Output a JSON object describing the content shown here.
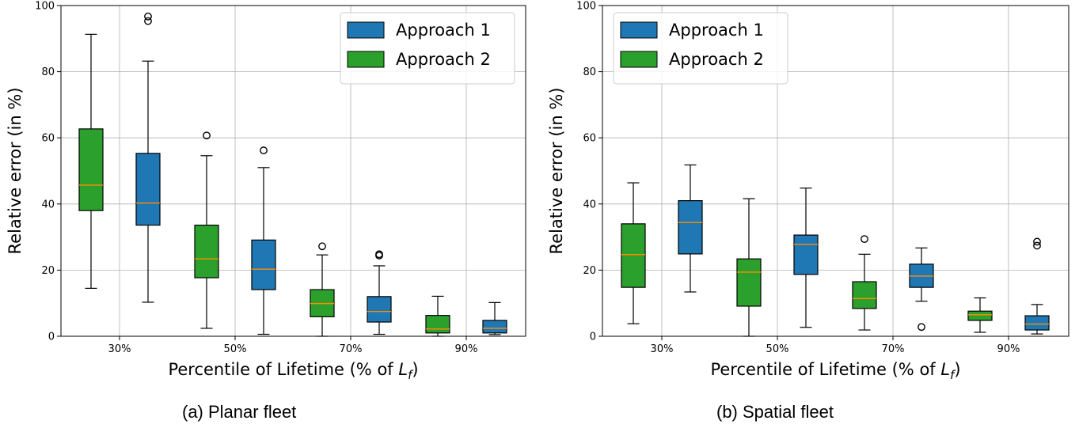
{
  "chart_data": [
    {
      "type": "box",
      "caption": "(a) Planar fleet",
      "xlabel": "Percentile of Lifetime (% of L_f)",
      "xlabel_parts": {
        "text": "Percentile of Lifetime (% of ",
        "var": "L",
        "sub": "f",
        "close": ")"
      },
      "ylabel": "Relative error (in %)",
      "ylim": [
        0,
        100
      ],
      "yticks": [
        0,
        20,
        40,
        60,
        80,
        100
      ],
      "xticks": [
        "30%",
        "50%",
        "70%",
        "90%"
      ],
      "grid": true,
      "legend_position": "top-right",
      "series": [
        {
          "name": "Approach 1",
          "color": "#1f77b4"
        },
        {
          "name": "Approach 2",
          "color": "#2ca02c"
        }
      ],
      "boxes": [
        {
          "series": "Approach 2",
          "group": "30%",
          "whisker_low": 14.5,
          "q1": 38,
          "median": 45.7,
          "q3": 62.7,
          "whisker_high": 91.3,
          "outliers": []
        },
        {
          "series": "Approach 1",
          "group": "30%",
          "whisker_low": 10.3,
          "q1": 33.6,
          "median": 40.3,
          "q3": 55.3,
          "whisker_high": 83.2,
          "outliers": [
            95.3,
            96.7
          ]
        },
        {
          "series": "Approach 2",
          "group": "50%",
          "whisker_low": 2.4,
          "q1": 17.7,
          "median": 23.4,
          "q3": 33.6,
          "whisker_high": 54.6,
          "outliers": [
            60.7
          ]
        },
        {
          "series": "Approach 1",
          "group": "50%",
          "whisker_low": 0.6,
          "q1": 14.1,
          "median": 20.3,
          "q3": 29.1,
          "whisker_high": 51,
          "outliers": [
            56.2
          ]
        },
        {
          "series": "Approach 2",
          "group": "70%",
          "whisker_low": 0,
          "q1": 5.9,
          "median": 9.9,
          "q3": 14.1,
          "whisker_high": 24.6,
          "outliers": [
            27.2
          ]
        },
        {
          "series": "Approach 1",
          "group": "70%",
          "whisker_low": 0.6,
          "q1": 4.3,
          "median": 7.5,
          "q3": 12,
          "whisker_high": 21.3,
          "outliers": [
            24.4,
            24.8
          ]
        },
        {
          "series": "Approach 2",
          "group": "90%",
          "whisker_low": 0,
          "q1": 1,
          "median": 2.2,
          "q3": 6.3,
          "whisker_high": 12.1,
          "outliers": []
        },
        {
          "series": "Approach 1",
          "group": "90%",
          "whisker_low": 0.5,
          "q1": 1,
          "median": 2.4,
          "q3": 4.8,
          "whisker_high": 10.2,
          "outliers": []
        }
      ]
    },
    {
      "type": "box",
      "caption": "(b) Spatial fleet",
      "xlabel": "Percentile of Lifetime (% of L_f)",
      "xlabel_parts": {
        "text": "Percentile of Lifetime (% of ",
        "var": "L",
        "sub": "f",
        "close": ")"
      },
      "ylabel": "Relative error (in %)",
      "ylim": [
        0,
        100
      ],
      "yticks": [
        0,
        20,
        40,
        60,
        80,
        100
      ],
      "xticks": [
        "30%",
        "50%",
        "70%",
        "90%"
      ],
      "grid": true,
      "legend_position": "top-left",
      "series": [
        {
          "name": "Approach 1",
          "color": "#1f77b4"
        },
        {
          "name": "Approach 2",
          "color": "#2ca02c"
        }
      ],
      "boxes": [
        {
          "series": "Approach 2",
          "group": "30%",
          "whisker_low": 3.8,
          "q1": 14.8,
          "median": 24.7,
          "q3": 34,
          "whisker_high": 46.4,
          "outliers": []
        },
        {
          "series": "Approach 1",
          "group": "30%",
          "whisker_low": 13.4,
          "q1": 24.9,
          "median": 34.4,
          "q3": 41,
          "whisker_high": 51.8,
          "outliers": []
        },
        {
          "series": "Approach 2",
          "group": "50%",
          "whisker_low": 0,
          "q1": 9.1,
          "median": 19.4,
          "q3": 23.4,
          "whisker_high": 41.6,
          "outliers": []
        },
        {
          "series": "Approach 1",
          "group": "50%",
          "whisker_low": 2.7,
          "q1": 18.7,
          "median": 27.8,
          "q3": 30.6,
          "whisker_high": 44.8,
          "outliers": []
        },
        {
          "series": "Approach 2",
          "group": "70%",
          "whisker_low": 1.9,
          "q1": 8.4,
          "median": 11.4,
          "q3": 16.5,
          "whisker_high": 24.8,
          "outliers": [
            29.4
          ]
        },
        {
          "series": "Approach 1",
          "group": "70%",
          "whisker_low": 10.6,
          "q1": 14.8,
          "median": 18.2,
          "q3": 21.8,
          "whisker_high": 26.7,
          "outliers": [
            2.8
          ]
        },
        {
          "series": "Approach 2",
          "group": "90%",
          "whisker_low": 1.2,
          "q1": 4.8,
          "median": 6.5,
          "q3": 7.6,
          "whisker_high": 11.6,
          "outliers": []
        },
        {
          "series": "Approach 1",
          "group": "90%",
          "whisker_low": 0.7,
          "q1": 1.9,
          "median": 3.7,
          "q3": 6.2,
          "whisker_high": 9.6,
          "outliers": [
            27.4,
            28.6
          ]
        }
      ]
    }
  ]
}
